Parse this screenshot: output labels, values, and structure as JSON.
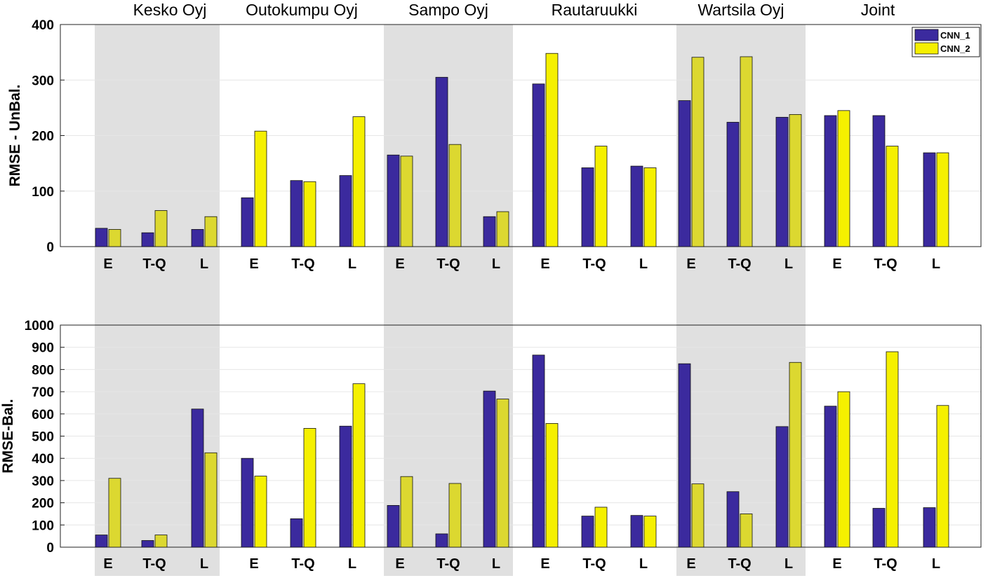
{
  "colors": {
    "cnn1": "#3b2a9e",
    "cnn2": "#f5f000",
    "cnn2_shaded": "#dcd830",
    "shade": "#e0e0e0",
    "grid": "#e6e6e6",
    "axis": "#222222"
  },
  "chart_data": {
    "type": "bar",
    "group_titles": [
      "Kesko Oyj",
      "Outokumpu Oyj",
      "Sampo Oyj",
      "Rautaruukki",
      "Wartsila Oyj",
      "Joint"
    ],
    "categories": [
      "E",
      "T-Q",
      "L",
      "E",
      "T-Q",
      "L",
      "E",
      "T-Q",
      "L",
      "E",
      "T-Q",
      "L",
      "E",
      "T-Q",
      "L",
      "E",
      "T-Q",
      "L"
    ],
    "shaded_groups": [
      0,
      2,
      4
    ],
    "legend": [
      "CNN_1",
      "CNN_2"
    ],
    "legend_position": "top-right",
    "grid": true,
    "panels": [
      {
        "ylabel": "RMSE - UnBal.",
        "ylim": [
          0,
          400
        ],
        "yticks": [
          0,
          100,
          200,
          300,
          400
        ],
        "series": [
          {
            "name": "CNN_1",
            "values": [
              33,
              25,
              31,
              88,
              119,
              128,
              165,
              305,
              54,
              293,
              142,
              145,
              263,
              224,
              233,
              236,
              236,
              169
            ]
          },
          {
            "name": "CNN_2",
            "values": [
              31,
              65,
              54,
              208,
              117,
              234,
              163,
              184,
              63,
              348,
              181,
              142,
              341,
              342,
              238,
              245,
              181,
              169
            ]
          }
        ]
      },
      {
        "ylabel": "RMSE-Bal.",
        "ylim": [
          0,
          1000
        ],
        "yticks": [
          0,
          100,
          200,
          300,
          400,
          500,
          600,
          700,
          800,
          900,
          1000
        ],
        "series": [
          {
            "name": "CNN_1",
            "values": [
              55,
              30,
              622,
              400,
              128,
              545,
              188,
              60,
              703,
              865,
              140,
              143,
              826,
              250,
              543,
              635,
              175,
              178
            ]
          },
          {
            "name": "CNN_2",
            "values": [
              310,
              55,
              425,
              320,
              535,
              736,
              318,
              287,
              667,
              557,
              180,
              140,
              285,
              150,
              832,
              700,
              880,
              638
            ]
          }
        ]
      }
    ]
  }
}
